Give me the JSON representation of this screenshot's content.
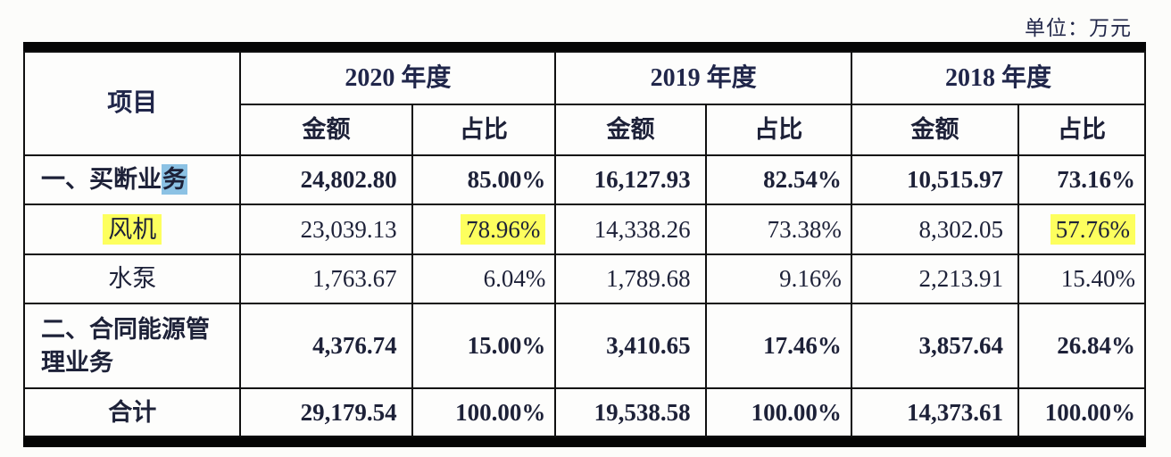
{
  "page": {
    "unit_label": "单位：万元"
  },
  "colors": {
    "highlight_yellow": "#fdff5e",
    "selection_blue": "#8cc2e4",
    "ink": "#1d2138",
    "rule_black": "#050505"
  },
  "table": {
    "item_header": "项目",
    "amount_label": "金额",
    "share_label": "占比",
    "year_groups": [
      {
        "label": "2020 年度"
      },
      {
        "label": "2019 年度"
      },
      {
        "label": "2018 年度"
      }
    ],
    "rows": [
      {
        "label": "一、买断业",
        "label_selected": "务",
        "label_align": "left",
        "bold": true,
        "values": [
          "24,802.80",
          "85.00%",
          "16,127.93",
          "82.54%",
          "10,515.97",
          "73.16%"
        ],
        "yellow_cells": []
      },
      {
        "label": "风机",
        "label_yellow": true,
        "label_align": "center",
        "bold": false,
        "values": [
          "23,039.13",
          "78.96%",
          "14,338.26",
          "73.38%",
          "8,302.05",
          "57.76%"
        ],
        "yellow_cells": [
          1,
          5
        ]
      },
      {
        "label": "水泵",
        "label_align": "center",
        "bold": false,
        "values": [
          "1,763.67",
          "6.04%",
          "1,789.68",
          "9.16%",
          "2,213.91",
          "15.40%"
        ],
        "yellow_cells": []
      },
      {
        "label": "二、合同能源管理业务",
        "label_align": "left",
        "bold": true,
        "values": [
          "4,376.74",
          "15.00%",
          "3,410.65",
          "17.46%",
          "3,857.64",
          "26.84%"
        ],
        "yellow_cells": []
      },
      {
        "label": "合计",
        "label_align": "center",
        "bold": true,
        "values": [
          "29,179.54",
          "100.00%",
          "19,538.58",
          "100.00%",
          "14,373.61",
          "100.00%"
        ],
        "yellow_cells": []
      }
    ]
  }
}
